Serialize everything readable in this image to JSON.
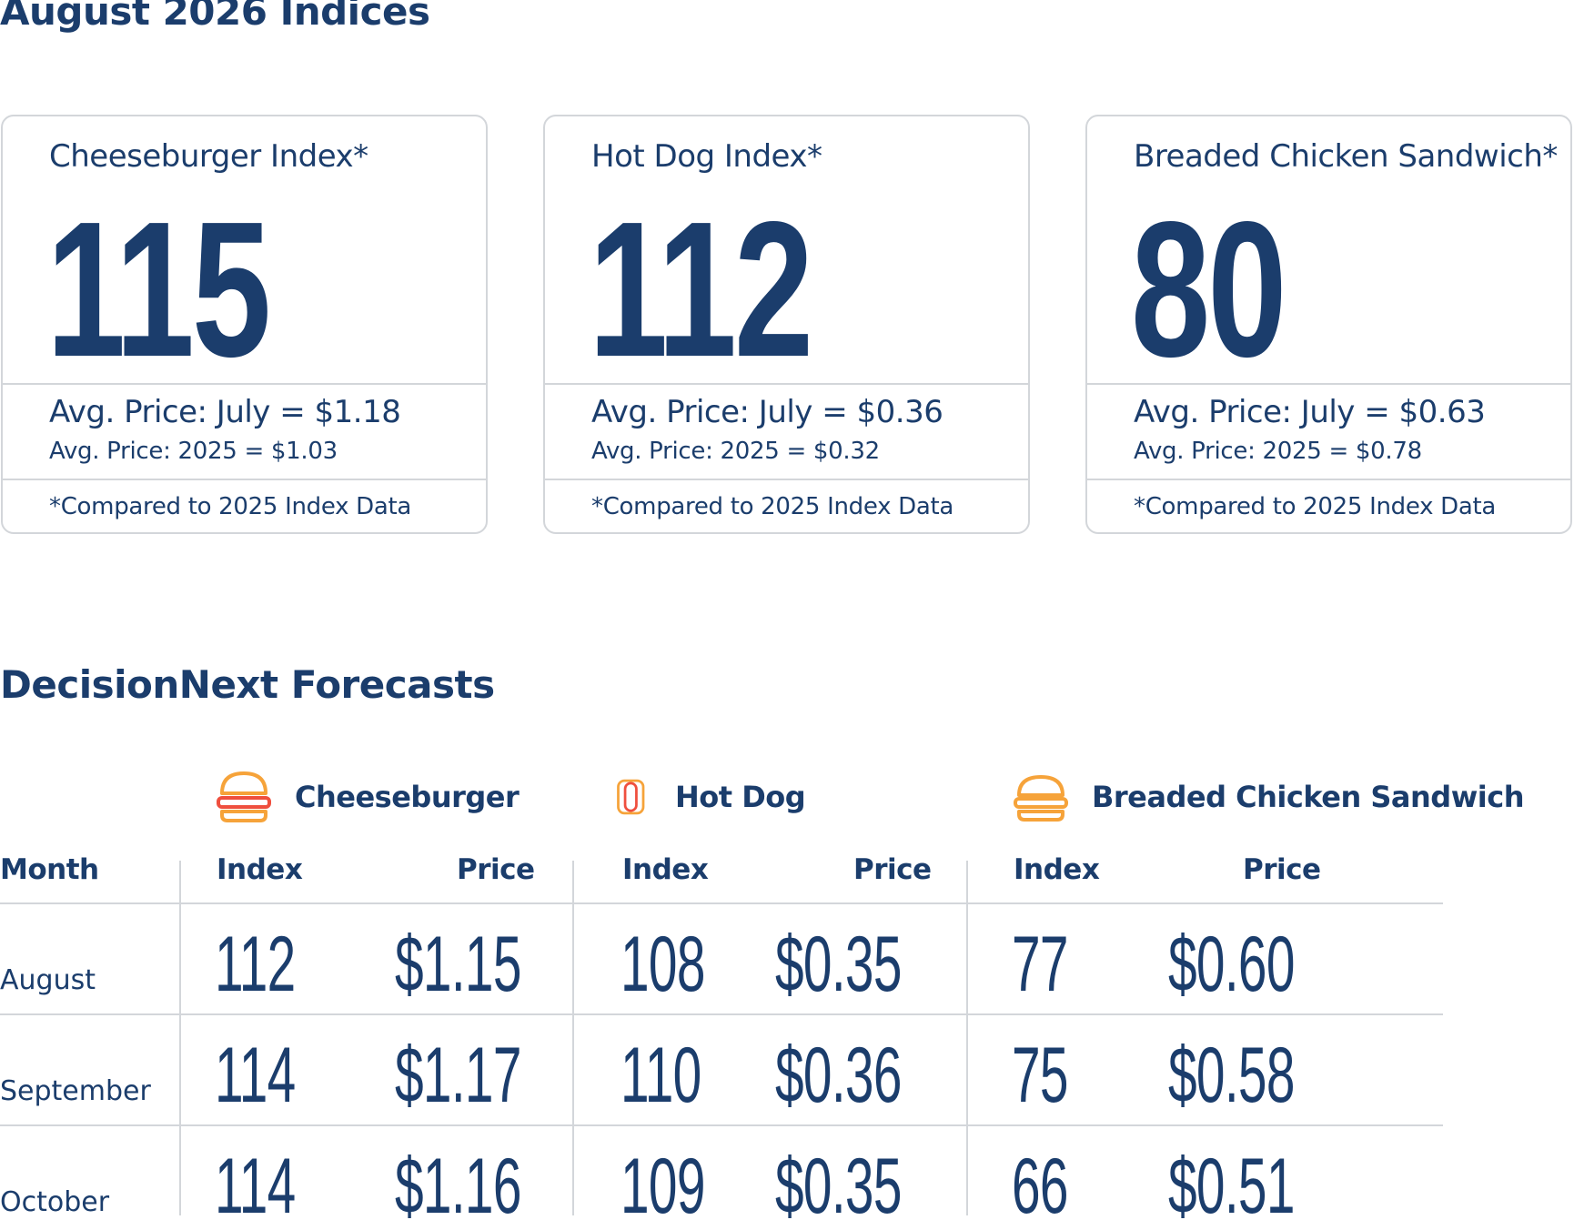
{
  "indices": {
    "title": "August 2026 Indices",
    "cards": [
      {
        "name": "Cheeseburger Index*",
        "value": "115",
        "price_primary": "Avg. Price: July = $1.18",
        "price_secondary": "Avg. Price: 2025 = $1.03",
        "note": "*Compared to 2025 Index Data"
      },
      {
        "name": "Hot Dog Index*",
        "value": "112",
        "price_primary": "Avg. Price: July = $0.36",
        "price_secondary": "Avg. Price: 2025 = $0.32",
        "note": "*Compared to 2025 Index Data"
      },
      {
        "name": "Breaded Chicken Sandwich*",
        "value": "80",
        "price_primary": "Avg. Price: July = $0.63",
        "price_secondary": "Avg. Price: 2025 = $0.78",
        "note": "*Compared to 2025 Index Data"
      }
    ]
  },
  "forecasts": {
    "title": "DecisionNext Forecasts",
    "month_header": "Month",
    "products": [
      {
        "name": "Cheeseburger",
        "icon": "cheeseburger-icon",
        "index_header": "Index",
        "price_header": "Price"
      },
      {
        "name": "Hot Dog",
        "icon": "hot-dog-icon",
        "index_header": "Index",
        "price_header": "Price"
      },
      {
        "name": "Breaded Chicken Sandwich",
        "icon": "chicken-sandwich-icon",
        "index_header": "Index",
        "price_header": "Price"
      }
    ],
    "rows": [
      {
        "month": "August",
        "values": [
          {
            "index": "112",
            "price": "$1.15"
          },
          {
            "index": "108",
            "price": "$0.35"
          },
          {
            "index": "77",
            "price": "$0.60"
          }
        ]
      },
      {
        "month": "September",
        "values": [
          {
            "index": "114",
            "price": "$1.17"
          },
          {
            "index": "110",
            "price": "$0.36"
          },
          {
            "index": "75",
            "price": "$0.58"
          }
        ]
      },
      {
        "month": "October",
        "values": [
          {
            "index": "114",
            "price": "$1.16"
          },
          {
            "index": "109",
            "price": "$0.35"
          },
          {
            "index": "66",
            "price": "$0.51"
          }
        ]
      }
    ]
  },
  "colors": {
    "text": "#1b3d6c",
    "border": "#d3d6da",
    "icon_orange": "#f6a33a",
    "icon_red": "#ef4f3e"
  }
}
